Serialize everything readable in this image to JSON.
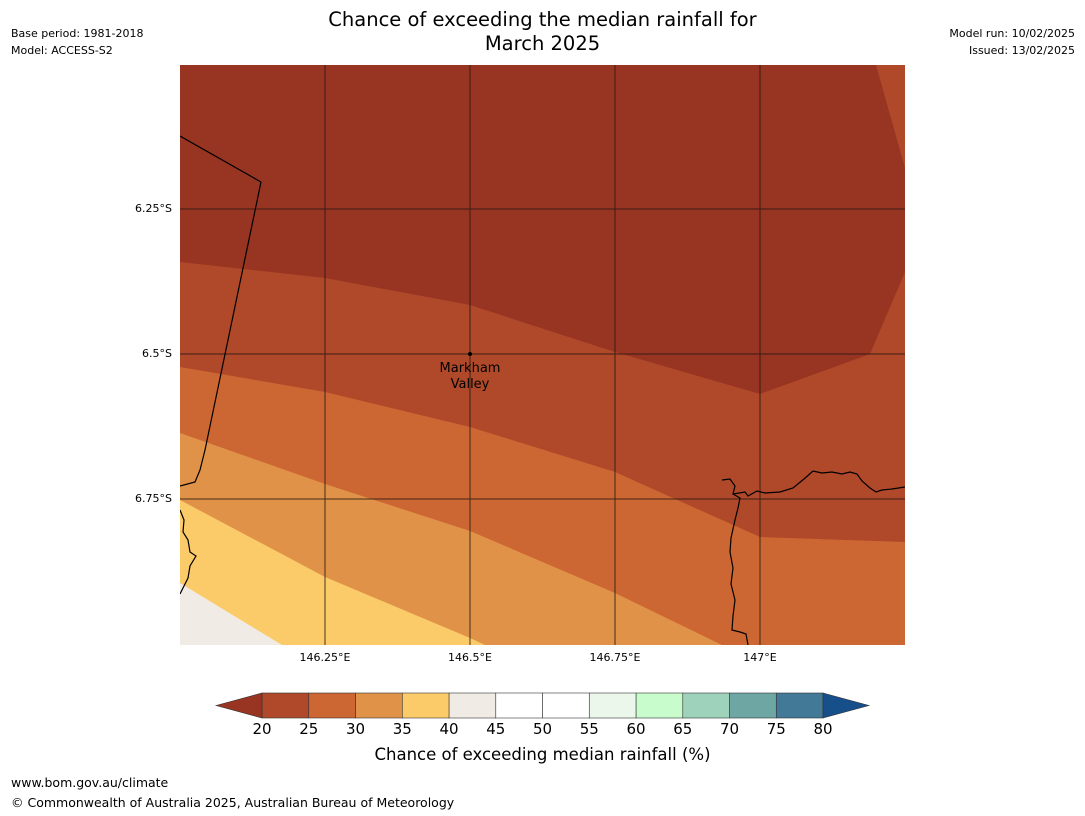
{
  "title_line1": "Chance of exceeding the median rainfall for",
  "title_line2": "March 2025",
  "base_period": "Base period: 1981-2018",
  "model": "Model: ACCESS-S2",
  "model_run": "Model run: 10/02/2025",
  "issued": "Issued: 13/02/2025",
  "y_labels": [
    "6.25°S",
    "6.5°S",
    "6.75°S"
  ],
  "x_labels": [
    "146.25°E",
    "146.5°E",
    "146.75°E",
    "147°E"
  ],
  "place_label_line1": "Markham",
  "place_label_line2": "Valley",
  "colorbar": {
    "title": "Chance of exceeding median rainfall (%)",
    "ticks": [
      "20",
      "25",
      "30",
      "35",
      "40",
      "45",
      "50",
      "55",
      "60",
      "65",
      "70",
      "75",
      "80"
    ],
    "bin_colors": [
      "#b0492a",
      "#cc6733",
      "#e09348",
      "#fccb69",
      "#f1ebe6",
      "#ffffff",
      "#ffffff",
      "#ebf7ea",
      "#c9fccc",
      "#9ed2bb",
      "#6ea6a4",
      "#417996"
    ],
    "under_color": "#983422",
    "over_color": "#164f8a"
  },
  "map_colors": {
    "lt20": "#983422",
    "c20_25": "#b0492a",
    "c25_30": "#cc6733",
    "c30_35": "#e09348",
    "c35_40": "#fccb69",
    "c40_45": "#f1ebe6"
  },
  "footer_url": "www.bom.gov.au/climate",
  "footer_copyright": "© Commonwealth of Australia 2025, Australian Bureau of Meteorology"
}
